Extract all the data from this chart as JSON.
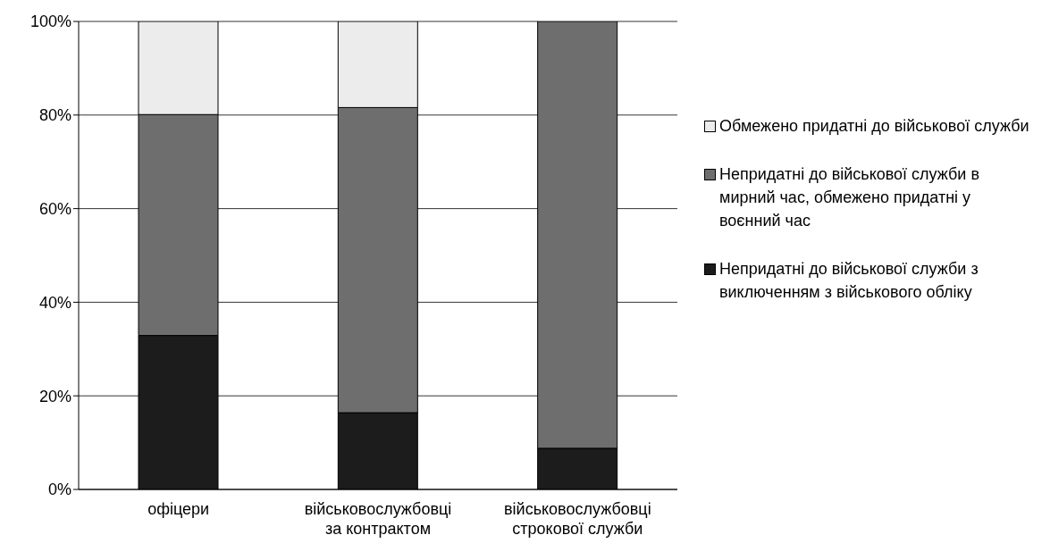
{
  "chart_data": {
    "type": "bar",
    "stacked": true,
    "categories": [
      "офіцери",
      "військовослужбовці за контрактом",
      "військовослужбовці строкової служби"
    ],
    "series": [
      {
        "name": "Непридатні до військової служби з виключенням з військового обліку",
        "color": "#1c1c1c",
        "values": [
          32.9,
          16.4,
          8.8
        ]
      },
      {
        "name": "Непридатні до військової служби в мирний час, обмежено придатні у воєнний час",
        "color": "#6e6e6e",
        "values": [
          47.2,
          65.2,
          91.2
        ]
      },
      {
        "name": "Обмежено придатні до військової служби",
        "color": "#ececec",
        "values": [
          19.9,
          18.4,
          0
        ]
      }
    ],
    "ylim": [
      0,
      100
    ],
    "yticks": [
      {
        "value": 0,
        "label": "0%"
      },
      {
        "value": 20,
        "label": "20%"
      },
      {
        "value": 40,
        "label": "40%"
      },
      {
        "value": 60,
        "label": "60%"
      },
      {
        "value": 80,
        "label": "80%"
      },
      {
        "value": 100,
        "label": "100%"
      }
    ],
    "grid": "y",
    "legend": "right"
  }
}
